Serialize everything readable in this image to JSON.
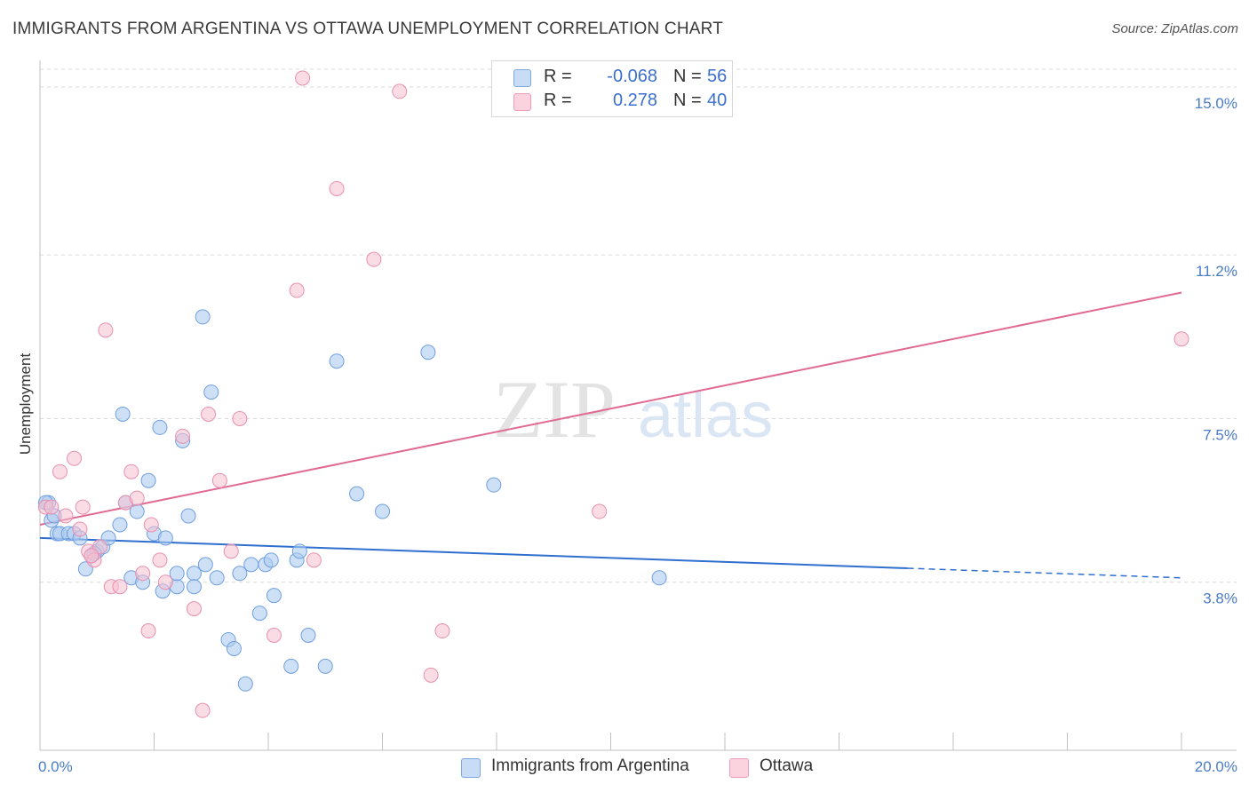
{
  "title": "IMMIGRANTS FROM ARGENTINA VS OTTAWA UNEMPLOYMENT CORRELATION CHART",
  "source": "Source: ZipAtlas.com",
  "watermark": {
    "zip": "ZIP",
    "atlas": "atlas"
  },
  "legend": {
    "series1": {
      "r_label": "R =",
      "r_value": "-0.068",
      "n_label": "N =",
      "n_value": "56"
    },
    "series2": {
      "r_label": "R =",
      "r_value": "0.278",
      "n_label": "N =",
      "n_value": "40"
    }
  },
  "bottom_legend": {
    "series1": "Immigrants from Argentina",
    "series2": "Ottawa"
  },
  "colors": {
    "blue_fill": "#aecbf0",
    "blue_stroke": "#6f9fe0",
    "blue_line": "#2f6fcf",
    "pink_fill": "#f6bfd0",
    "pink_stroke": "#e890ae",
    "pink_line": "#e06a93",
    "grid": "#d9d9d9",
    "axis": "#c0c0c0",
    "tick_text": "#4a7cc9"
  },
  "chart_data": {
    "type": "scatter",
    "title": "IMMIGRANTS FROM ARGENTINA VS OTTAWA UNEMPLOYMENT CORRELATION CHART",
    "xlabel": "",
    "ylabel": "Unemployment",
    "xlim": [
      0,
      20
    ],
    "ylim": [
      0,
      15.4
    ],
    "x_tick_labels": [
      "0.0%",
      "20.0%"
    ],
    "y_ticks": [
      3.8,
      7.5,
      11.2,
      15.0
    ],
    "y_tick_labels": [
      "3.8%",
      "7.5%",
      "11.2%",
      "15.0%"
    ],
    "series": [
      {
        "name": "Immigrants from Argentina",
        "r": -0.068,
        "n": 56,
        "trend": {
          "x_start": 0,
          "y_start": 4.8,
          "x_solid_end": 15.2,
          "x_end": 20,
          "y_end": 3.9
        },
        "points": [
          [
            0.15,
            5.6
          ],
          [
            0.2,
            5.2
          ],
          [
            0.25,
            5.3
          ],
          [
            0.3,
            4.9
          ],
          [
            0.35,
            4.9
          ],
          [
            0.5,
            4.9
          ],
          [
            0.6,
            4.9
          ],
          [
            0.7,
            4.8
          ],
          [
            0.8,
            4.1
          ],
          [
            0.9,
            4.4
          ],
          [
            1.0,
            4.5
          ],
          [
            1.1,
            4.6
          ],
          [
            1.2,
            4.8
          ],
          [
            1.4,
            5.1
          ],
          [
            1.5,
            5.6
          ],
          [
            1.6,
            3.9
          ],
          [
            1.7,
            5.4
          ],
          [
            1.8,
            3.8
          ],
          [
            1.9,
            6.1
          ],
          [
            2.0,
            4.9
          ],
          [
            2.1,
            7.3
          ],
          [
            2.15,
            3.6
          ],
          [
            2.2,
            4.8
          ],
          [
            2.4,
            3.7
          ],
          [
            2.4,
            4.0
          ],
          [
            2.5,
            7.0
          ],
          [
            2.6,
            5.3
          ],
          [
            2.7,
            4.0
          ],
          [
            2.7,
            3.7
          ],
          [
            2.85,
            9.8
          ],
          [
            2.9,
            4.2
          ],
          [
            3.0,
            8.1
          ],
          [
            3.1,
            3.9
          ],
          [
            3.3,
            2.5
          ],
          [
            3.4,
            2.3
          ],
          [
            3.5,
            4.0
          ],
          [
            3.6,
            1.5
          ],
          [
            3.7,
            4.2
          ],
          [
            3.85,
            3.1
          ],
          [
            3.95,
            4.2
          ],
          [
            4.05,
            4.3
          ],
          [
            4.1,
            3.5
          ],
          [
            4.4,
            1.9
          ],
          [
            4.5,
            4.3
          ],
          [
            4.55,
            4.5
          ],
          [
            4.7,
            2.6
          ],
          [
            5.0,
            1.9
          ],
          [
            5.2,
            8.8
          ],
          [
            5.55,
            5.8
          ],
          [
            6.0,
            5.4
          ],
          [
            6.8,
            9.0
          ],
          [
            7.95,
            6.0
          ],
          [
            10.85,
            3.9
          ],
          [
            0.1,
            5.6
          ],
          [
            1.45,
            7.6
          ],
          [
            0.95,
            4.45
          ]
        ]
      },
      {
        "name": "Ottawa",
        "r": 0.278,
        "n": 40,
        "trend": {
          "x_start": 0,
          "y_start": 5.1,
          "x_end": 20,
          "y_end": 10.35
        },
        "points": [
          [
            0.1,
            5.5
          ],
          [
            0.2,
            5.5
          ],
          [
            0.35,
            6.3
          ],
          [
            0.45,
            5.3
          ],
          [
            0.6,
            6.6
          ],
          [
            0.7,
            5.0
          ],
          [
            0.75,
            5.5
          ],
          [
            0.85,
            4.5
          ],
          [
            0.95,
            4.3
          ],
          [
            1.05,
            4.6
          ],
          [
            1.15,
            9.5
          ],
          [
            1.25,
            3.7
          ],
          [
            1.4,
            3.7
          ],
          [
            1.5,
            5.6
          ],
          [
            1.6,
            6.3
          ],
          [
            1.7,
            5.7
          ],
          [
            1.8,
            4.0
          ],
          [
            1.9,
            2.7
          ],
          [
            1.95,
            5.1
          ],
          [
            2.1,
            4.3
          ],
          [
            2.2,
            3.8
          ],
          [
            2.5,
            7.1
          ],
          [
            2.7,
            3.2
          ],
          [
            2.85,
            0.9
          ],
          [
            2.95,
            7.6
          ],
          [
            3.15,
            6.1
          ],
          [
            3.35,
            4.5
          ],
          [
            3.5,
            7.5
          ],
          [
            4.1,
            2.6
          ],
          [
            4.5,
            10.4
          ],
          [
            4.6,
            15.2
          ],
          [
            4.8,
            4.3
          ],
          [
            5.2,
            12.7
          ],
          [
            5.85,
            11.1
          ],
          [
            6.3,
            14.9
          ],
          [
            6.85,
            1.7
          ],
          [
            7.05,
            2.7
          ],
          [
            9.8,
            5.4
          ],
          [
            20.0,
            9.3
          ],
          [
            0.9,
            4.4
          ]
        ]
      }
    ]
  }
}
